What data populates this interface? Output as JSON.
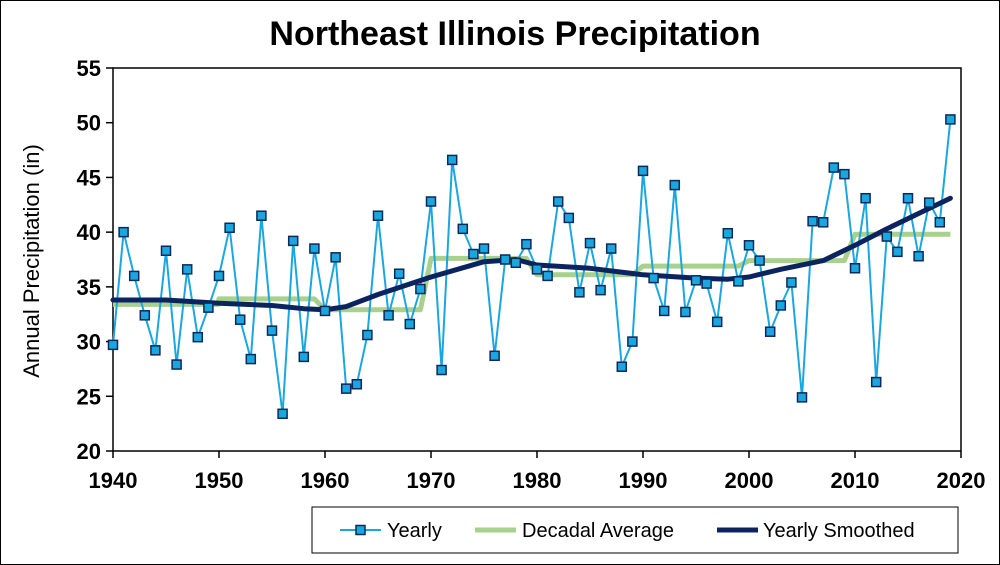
{
  "colors": {
    "yearly": "#1aa7e0",
    "yearly_marker_border": "#0b2a5a",
    "decadal": "#a9d18e",
    "smoothed": "#0b2460",
    "axis": "#000000"
  },
  "chart_data": {
    "type": "line",
    "title": "Northeast Illinois Precipitation",
    "xlabel": "",
    "ylabel": "Annual Precipitation (in)",
    "xlim": [
      1940,
      2020
    ],
    "ylim": [
      20,
      55
    ],
    "xticks": [
      "1940",
      "1950",
      "1960",
      "1970",
      "1980",
      "1990",
      "2000",
      "2010",
      "2020"
    ],
    "yticks": [
      "20",
      "25",
      "30",
      "35",
      "40",
      "45",
      "50",
      "55"
    ],
    "legend": {
      "position": "bottom",
      "entries": [
        "Yearly",
        "Decadal Average",
        "Yearly Smoothed"
      ]
    },
    "series": [
      {
        "name": "Yearly",
        "style": "line-with-square-markers",
        "x": [
          1940,
          1941,
          1942,
          1943,
          1944,
          1945,
          1946,
          1947,
          1948,
          1949,
          1950,
          1951,
          1952,
          1953,
          1954,
          1955,
          1956,
          1957,
          1958,
          1959,
          1960,
          1961,
          1962,
          1963,
          1964,
          1965,
          1966,
          1967,
          1968,
          1969,
          1970,
          1971,
          1972,
          1973,
          1974,
          1975,
          1976,
          1977,
          1978,
          1979,
          1980,
          1981,
          1982,
          1983,
          1984,
          1985,
          1986,
          1987,
          1988,
          1989,
          1990,
          1991,
          1992,
          1993,
          1994,
          1995,
          1996,
          1997,
          1998,
          1999,
          2000,
          2001,
          2002,
          2003,
          2004,
          2005,
          2006,
          2007,
          2008,
          2009,
          2010,
          2011,
          2012,
          2013,
          2014,
          2015,
          2016,
          2017,
          2018,
          2019
        ],
        "y": [
          29.7,
          40.0,
          36.0,
          32.4,
          29.2,
          38.3,
          27.9,
          36.6,
          30.4,
          33.1,
          36.0,
          40.4,
          32.0,
          28.4,
          41.5,
          31.0,
          23.4,
          39.2,
          28.6,
          38.5,
          32.8,
          37.7,
          25.7,
          26.1,
          30.6,
          41.5,
          32.4,
          36.2,
          31.6,
          34.8,
          42.8,
          27.4,
          46.6,
          40.3,
          38.0,
          38.5,
          28.7,
          37.5,
          37.2,
          38.9,
          36.6,
          36.0,
          42.8,
          41.3,
          34.5,
          39.0,
          34.7,
          38.5,
          27.7,
          30.0,
          45.6,
          35.8,
          32.8,
          44.3,
          32.7,
          35.6,
          35.3,
          31.8,
          39.9,
          35.5,
          38.8,
          37.4,
          30.9,
          33.3,
          35.4,
          24.9,
          41.0,
          40.9,
          45.9,
          45.3,
          36.7,
          43.1,
          26.3,
          39.6,
          38.2,
          43.1,
          37.8,
          42.7,
          40.9,
          50.3
        ]
      },
      {
        "name": "Decadal Average",
        "style": "step",
        "x": [
          1940,
          1949.9,
          1950,
          1959,
          1960,
          1969,
          1970,
          1979,
          1980,
          1989,
          1990,
          1999,
          2000,
          2009,
          2010,
          2019
        ],
        "y": [
          33.4,
          33.4,
          33.9,
          33.9,
          32.9,
          32.9,
          37.6,
          37.6,
          36.1,
          36.1,
          36.9,
          36.9,
          37.4,
          37.4,
          39.8,
          39.8
        ]
      },
      {
        "name": "Yearly Smoothed",
        "style": "thick-line",
        "x": [
          1940,
          1945,
          1950,
          1955,
          1958,
          1960,
          1962,
          1965,
          1970,
          1975,
          1978,
          1980,
          1985,
          1990,
          1995,
          1998,
          2000,
          2003,
          2007,
          2010,
          2013,
          2016,
          2019
        ],
        "y": [
          33.8,
          33.8,
          33.5,
          33.3,
          33.0,
          32.9,
          33.2,
          34.3,
          35.9,
          37.3,
          37.5,
          37.0,
          36.7,
          36.1,
          35.8,
          35.7,
          35.9,
          36.6,
          37.4,
          38.8,
          40.3,
          41.7,
          43.1
        ]
      }
    ]
  }
}
